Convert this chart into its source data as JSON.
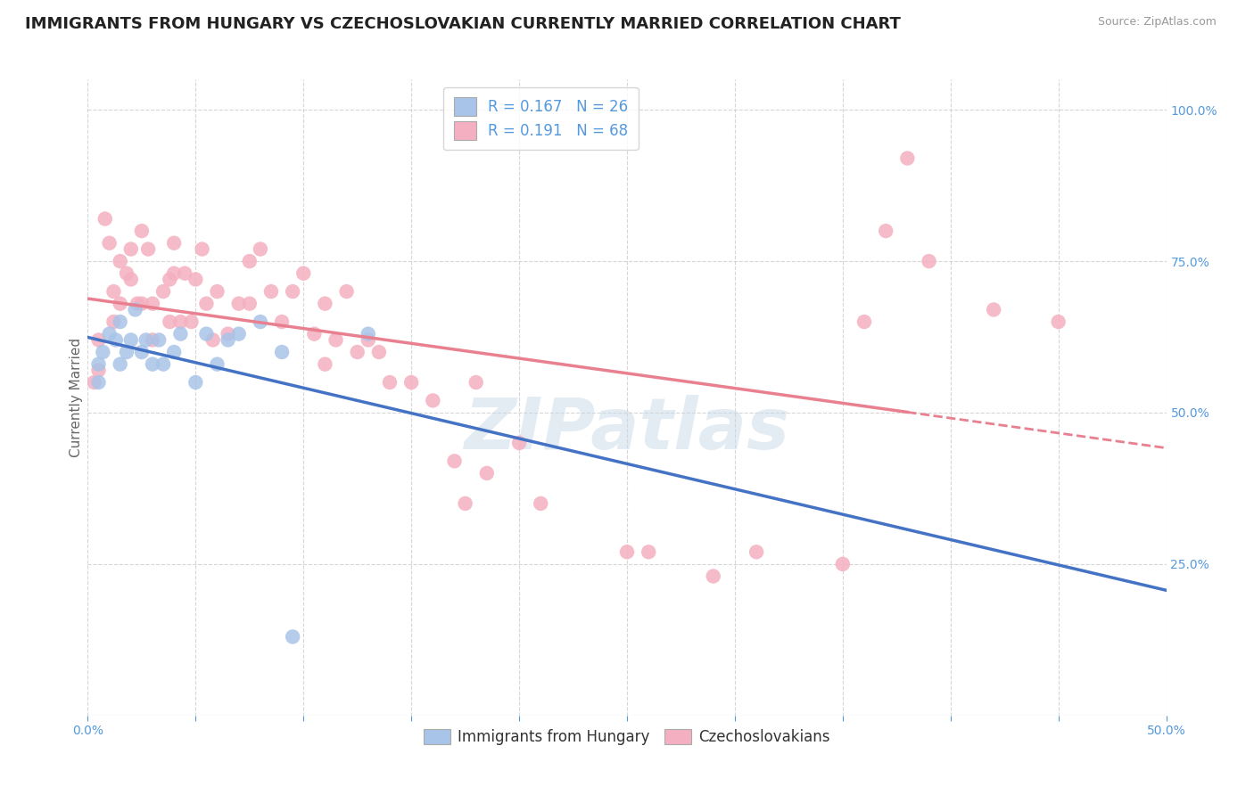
{
  "title": "IMMIGRANTS FROM HUNGARY VS CZECHOSLOVAKIAN CURRENTLY MARRIED CORRELATION CHART",
  "source_text": "Source: ZipAtlas.com",
  "ylabel": "Currently Married",
  "xlim": [
    0.0,
    0.5
  ],
  "ylim": [
    0.0,
    1.05
  ],
  "xticks": [
    0.0,
    0.05,
    0.1,
    0.15,
    0.2,
    0.25,
    0.3,
    0.35,
    0.4,
    0.45,
    0.5
  ],
  "yticks_right": [
    0.25,
    0.5,
    0.75,
    1.0
  ],
  "ytick_right_labels": [
    "25.0%",
    "50.0%",
    "75.0%",
    "100.0%"
  ],
  "hungary_color": "#a8c4e8",
  "czecho_color": "#f4b0c0",
  "hungary_line_color": "#4472c4",
  "czecho_line_color": "#e88090",
  "R_hungary": 0.167,
  "N_hungary": 26,
  "R_czecho": 0.191,
  "N_czecho": 68,
  "legend_label_hungary": "Immigrants from Hungary",
  "legend_label_czecho": "Czechoslovakians",
  "watermark": "ZIPatlas",
  "hungary_points_x": [
    0.005,
    0.005,
    0.007,
    0.01,
    0.013,
    0.015,
    0.015,
    0.018,
    0.02,
    0.022,
    0.025,
    0.027,
    0.03,
    0.033,
    0.035,
    0.04,
    0.043,
    0.05,
    0.055,
    0.06,
    0.065,
    0.07,
    0.08,
    0.09,
    0.095,
    0.13
  ],
  "hungary_points_y": [
    0.58,
    0.55,
    0.6,
    0.63,
    0.62,
    0.58,
    0.65,
    0.6,
    0.62,
    0.67,
    0.6,
    0.62,
    0.58,
    0.62,
    0.58,
    0.6,
    0.63,
    0.55,
    0.63,
    0.58,
    0.62,
    0.63,
    0.65,
    0.6,
    0.13,
    0.63
  ],
  "czecho_points_x": [
    0.003,
    0.005,
    0.005,
    0.008,
    0.01,
    0.012,
    0.012,
    0.015,
    0.015,
    0.018,
    0.02,
    0.02,
    0.023,
    0.025,
    0.025,
    0.028,
    0.03,
    0.03,
    0.035,
    0.038,
    0.038,
    0.04,
    0.04,
    0.043,
    0.045,
    0.048,
    0.05,
    0.053,
    0.055,
    0.058,
    0.06,
    0.065,
    0.07,
    0.075,
    0.075,
    0.08,
    0.085,
    0.09,
    0.095,
    0.1,
    0.105,
    0.11,
    0.11,
    0.115,
    0.12,
    0.125,
    0.13,
    0.135,
    0.14,
    0.15,
    0.16,
    0.17,
    0.175,
    0.18,
    0.185,
    0.2,
    0.21,
    0.25,
    0.26,
    0.29,
    0.31,
    0.35,
    0.36,
    0.37,
    0.38,
    0.39,
    0.42,
    0.45
  ],
  "czecho_points_y": [
    0.55,
    0.62,
    0.57,
    0.82,
    0.78,
    0.7,
    0.65,
    0.75,
    0.68,
    0.73,
    0.77,
    0.72,
    0.68,
    0.8,
    0.68,
    0.77,
    0.68,
    0.62,
    0.7,
    0.72,
    0.65,
    0.78,
    0.73,
    0.65,
    0.73,
    0.65,
    0.72,
    0.77,
    0.68,
    0.62,
    0.7,
    0.63,
    0.68,
    0.75,
    0.68,
    0.77,
    0.7,
    0.65,
    0.7,
    0.73,
    0.63,
    0.68,
    0.58,
    0.62,
    0.7,
    0.6,
    0.62,
    0.6,
    0.55,
    0.55,
    0.52,
    0.42,
    0.35,
    0.55,
    0.4,
    0.45,
    0.35,
    0.27,
    0.27,
    0.23,
    0.27,
    0.25,
    0.65,
    0.8,
    0.92,
    0.75,
    0.67,
    0.65
  ],
  "background_color": "#ffffff",
  "grid_color": "#cccccc",
  "title_fontsize": 13,
  "axis_label_fontsize": 11,
  "tick_fontsize": 10,
  "legend_fontsize": 12
}
